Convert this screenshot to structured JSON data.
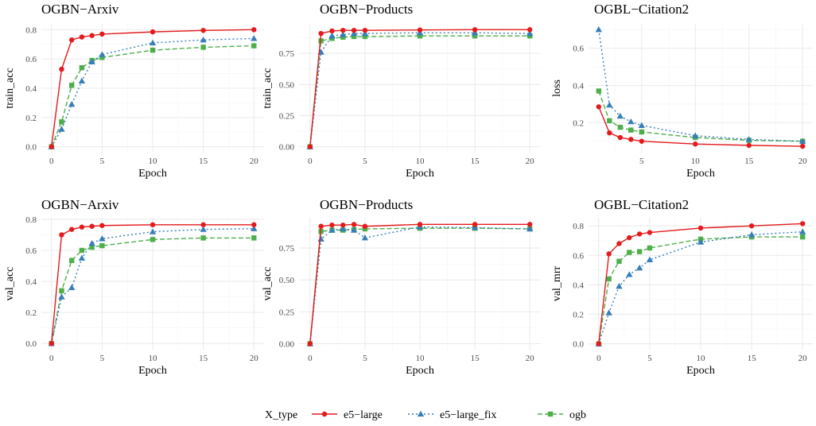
{
  "legend": {
    "title": "X_type",
    "items": [
      {
        "name": "e5−large",
        "color": "#E41A1C",
        "shape": "circle",
        "dash": "solid"
      },
      {
        "name": "e5−large_fix",
        "color": "#377EB8",
        "shape": "triangle",
        "dash": "dotted"
      },
      {
        "name": "ogb",
        "color": "#4DAF4A",
        "shape": "square",
        "dash": "dashed"
      }
    ]
  },
  "chart_data": [
    {
      "type": "line",
      "title": "OGBN−Arxiv",
      "xlabel": "Epoch",
      "ylabel": "train_acc",
      "xlim": [
        -1,
        21
      ],
      "ylim": [
        -0.04,
        0.84
      ],
      "xticks": [
        0,
        5,
        10,
        15,
        20
      ],
      "xtick_labels": [
        "0",
        "5",
        "10",
        "15",
        "20"
      ],
      "yticks": [
        0,
        0.2,
        0.4,
        0.6,
        0.8
      ],
      "ytick_labels": [
        "0.0",
        "0.2",
        "0.4",
        "0.6",
        "0.8"
      ],
      "x": [
        0,
        1,
        2,
        3,
        4,
        5,
        10,
        15,
        20
      ],
      "series": [
        {
          "name": "e5−large",
          "values": [
            0.0,
            0.53,
            0.73,
            0.75,
            0.76,
            0.77,
            0.785,
            0.795,
            0.8
          ]
        },
        {
          "name": "e5−large_fix",
          "values": [
            0.0,
            0.12,
            0.29,
            0.45,
            0.58,
            0.63,
            0.71,
            0.73,
            0.74
          ]
        },
        {
          "name": "ogb",
          "values": [
            0.0,
            0.17,
            0.42,
            0.54,
            0.59,
            0.61,
            0.66,
            0.68,
            0.69
          ]
        }
      ]
    },
    {
      "type": "line",
      "title": "OGBN−Products",
      "xlabel": "Epoch",
      "ylabel": "train_acc",
      "xlim": [
        -1,
        21
      ],
      "ylim": [
        -0.047,
        0.987
      ],
      "xticks": [
        0,
        5,
        10,
        15,
        20
      ],
      "xtick_labels": [
        "0",
        "5",
        "10",
        "15",
        "20"
      ],
      "yticks": [
        0,
        0.25,
        0.5,
        0.75
      ],
      "ytick_labels": [
        "0.00",
        "0.25",
        "0.50",
        "0.75"
      ],
      "x": [
        0,
        1,
        2,
        3,
        4,
        5,
        10,
        15,
        20
      ],
      "series": [
        {
          "name": "e5−large",
          "values": [
            0.0,
            0.91,
            0.93,
            0.935,
            0.935,
            0.935,
            0.938,
            0.94,
            0.94
          ]
        },
        {
          "name": "e5−large_fix",
          "values": [
            0.0,
            0.76,
            0.89,
            0.9,
            0.91,
            0.91,
            0.915,
            0.915,
            0.91
          ]
        },
        {
          "name": "ogb",
          "values": [
            0.0,
            0.85,
            0.87,
            0.88,
            0.885,
            0.885,
            0.89,
            0.89,
            0.89
          ]
        }
      ]
    },
    {
      "type": "line",
      "title": "OGBL−Citation2",
      "xlabel": "Epoch",
      "ylabel": "loss",
      "xlim": [
        0.05,
        20.95
      ],
      "ylim": [
        0.039,
        0.731
      ],
      "xticks": [
        5,
        10,
        15,
        20
      ],
      "xtick_labels": [
        "5",
        "10",
        "15",
        "20"
      ],
      "yticks": [
        0.2,
        0.4,
        0.6
      ],
      "ytick_labels": [
        "0.2",
        "0.4",
        "0.6"
      ],
      "x": [
        1,
        2,
        3,
        4,
        5,
        10,
        15,
        20
      ],
      "series": [
        {
          "name": "e5−large",
          "values": [
            0.285,
            0.145,
            0.12,
            0.11,
            0.1,
            0.085,
            0.078,
            0.073
          ]
        },
        {
          "name": "e5−large_fix",
          "values": [
            0.7,
            0.295,
            0.235,
            0.205,
            0.185,
            0.13,
            0.11,
            0.1
          ]
        },
        {
          "name": "ogb",
          "values": [
            0.37,
            0.21,
            0.175,
            0.16,
            0.15,
            0.12,
            0.105,
            0.1
          ]
        }
      ]
    },
    {
      "type": "line",
      "title": "OGBN−Arxiv",
      "xlabel": "Epoch",
      "ylabel": "val_acc",
      "xlim": [
        -1,
        21
      ],
      "ylim": [
        -0.04,
        0.81
      ],
      "xticks": [
        0,
        5,
        10,
        15,
        20
      ],
      "xtick_labels": [
        "0",
        "5",
        "10",
        "15",
        "20"
      ],
      "yticks": [
        0,
        0.2,
        0.4,
        0.6,
        0.8
      ],
      "ytick_labels": [
        "0.0",
        "0.2",
        "0.4",
        "0.6",
        "0.8"
      ],
      "x": [
        0,
        1,
        2,
        3,
        4,
        5,
        10,
        15,
        20
      ],
      "series": [
        {
          "name": "e5−large",
          "values": [
            0.0,
            0.7,
            0.735,
            0.75,
            0.755,
            0.76,
            0.765,
            0.765,
            0.765
          ]
        },
        {
          "name": "e5−large_fix",
          "values": [
            0.0,
            0.3,
            0.36,
            0.55,
            0.645,
            0.675,
            0.72,
            0.735,
            0.74
          ]
        },
        {
          "name": "ogb",
          "values": [
            0.0,
            0.34,
            0.535,
            0.6,
            0.62,
            0.63,
            0.67,
            0.68,
            0.68
          ]
        }
      ]
    },
    {
      "type": "line",
      "title": "OGBN−Products",
      "xlabel": "Epoch",
      "ylabel": "val_acc",
      "xlim": [
        -1,
        21
      ],
      "ylim": [
        -0.047,
        0.987
      ],
      "xticks": [
        0,
        5,
        10,
        15,
        20
      ],
      "xtick_labels": [
        "0",
        "5",
        "10",
        "15",
        "20"
      ],
      "yticks": [
        0,
        0.25,
        0.5,
        0.75
      ],
      "ytick_labels": [
        "0.00",
        "0.25",
        "0.50",
        "0.75"
      ],
      "x": [
        0,
        1,
        2,
        3,
        4,
        5,
        10,
        15,
        20
      ],
      "series": [
        {
          "name": "e5−large",
          "values": [
            0.0,
            0.92,
            0.93,
            0.93,
            0.935,
            0.92,
            0.935,
            0.935,
            0.935
          ]
        },
        {
          "name": "e5−large_fix",
          "values": [
            0.0,
            0.82,
            0.89,
            0.9,
            0.89,
            0.83,
            0.915,
            0.91,
            0.9
          ]
        },
        {
          "name": "ogb",
          "values": [
            0.0,
            0.88,
            0.89,
            0.89,
            0.895,
            0.9,
            0.905,
            0.905,
            0.9
          ]
        }
      ]
    },
    {
      "type": "line",
      "title": "OGBL−Citation2",
      "xlabel": "Epoch",
      "ylabel": "val_mrr",
      "xlim": [
        -1,
        21
      ],
      "ylim": [
        -0.04,
        0.855
      ],
      "xticks": [
        0,
        5,
        10,
        15,
        20
      ],
      "xtick_labels": [
        "0",
        "5",
        "10",
        "15",
        "20"
      ],
      "yticks": [
        0,
        0.2,
        0.4,
        0.6,
        0.8
      ],
      "ytick_labels": [
        "0.0",
        "0.2",
        "0.4",
        "0.6",
        "0.8"
      ],
      "x": [
        0,
        1,
        2,
        3,
        4,
        5,
        10,
        15,
        20
      ],
      "series": [
        {
          "name": "e5−large",
          "values": [
            0.0,
            0.61,
            0.68,
            0.72,
            0.745,
            0.755,
            0.785,
            0.8,
            0.815
          ]
        },
        {
          "name": "e5−large_fix",
          "values": [
            0.0,
            0.21,
            0.39,
            0.47,
            0.515,
            0.57,
            0.69,
            0.74,
            0.76
          ]
        },
        {
          "name": "ogb",
          "values": [
            0.0,
            0.44,
            0.56,
            0.62,
            0.625,
            0.65,
            0.71,
            0.725,
            0.725
          ]
        }
      ]
    }
  ]
}
